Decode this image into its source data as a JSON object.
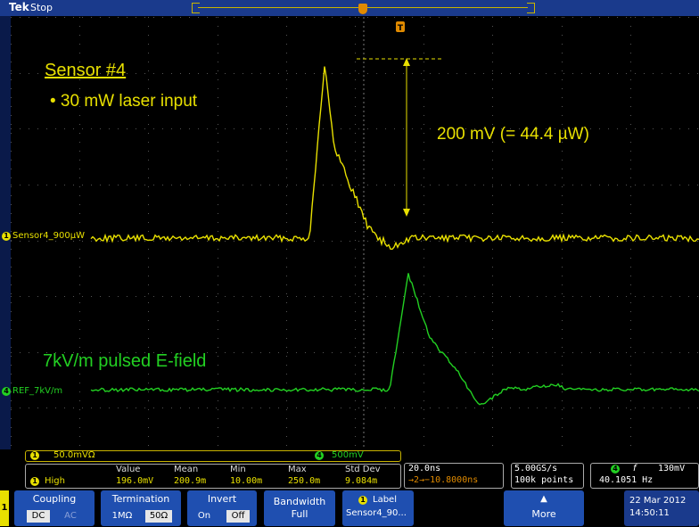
{
  "status": {
    "logo": "Tek",
    "run_state": "Stop"
  },
  "annotations": {
    "sensor_title": "Sensor #4",
    "laser_bullet": "• 30 mW laser input",
    "amplitude": "200 mV (= 44.4 µW)",
    "efield": "7kV/m pulsed E-field"
  },
  "traces": {
    "ch1": {
      "number": "1",
      "label": "Sensor4_900µW",
      "color": "#e8e000"
    },
    "ref4": {
      "number": "4",
      "label": "REF_7kV/m",
      "color": "#22d022"
    }
  },
  "trigger_marker": "T",
  "readout": {
    "ch1_scale": "50.0mVΩ",
    "ch4_scale": "500mV",
    "ch1_num": "1",
    "ch4_num": "4",
    "meas": {
      "source": "1",
      "name": "High",
      "headers": [
        "Value",
        "Mean",
        "Min",
        "Max",
        "Std Dev"
      ],
      "values": [
        "196.0mV",
        "200.9m",
        "10.00m",
        "250.0m",
        "9.084m"
      ]
    },
    "timebase": {
      "scale": "20.0ns",
      "delay": "→2→−10.8000ns"
    },
    "acquisition": {
      "rate": "5.00GS/s",
      "points": "100k points"
    },
    "trigger": {
      "source": "4",
      "slope": "f",
      "level": "130mV",
      "freq": "40.1051 Hz"
    }
  },
  "menu": {
    "channel": "1",
    "coupling": {
      "label": "Coupling",
      "options": [
        "DC",
        "AC"
      ]
    },
    "termination": {
      "label": "Termination",
      "options": [
        "1MΩ",
        "50Ω"
      ]
    },
    "invert": {
      "label": "Invert",
      "options": [
        "On",
        "Off"
      ]
    },
    "bandwidth": {
      "label": "Bandwidth",
      "value": "Full"
    },
    "label_btn": {
      "num": "1",
      "label": "Label",
      "value": "Sensor4_90..."
    },
    "more": "More",
    "date": "22 Mar 2012",
    "time": "14:50:11"
  },
  "colors": {
    "ch1": "#e8e000",
    "ref4": "#22d022",
    "accent": "#1f4fb0",
    "trigger": "#e08a00"
  }
}
